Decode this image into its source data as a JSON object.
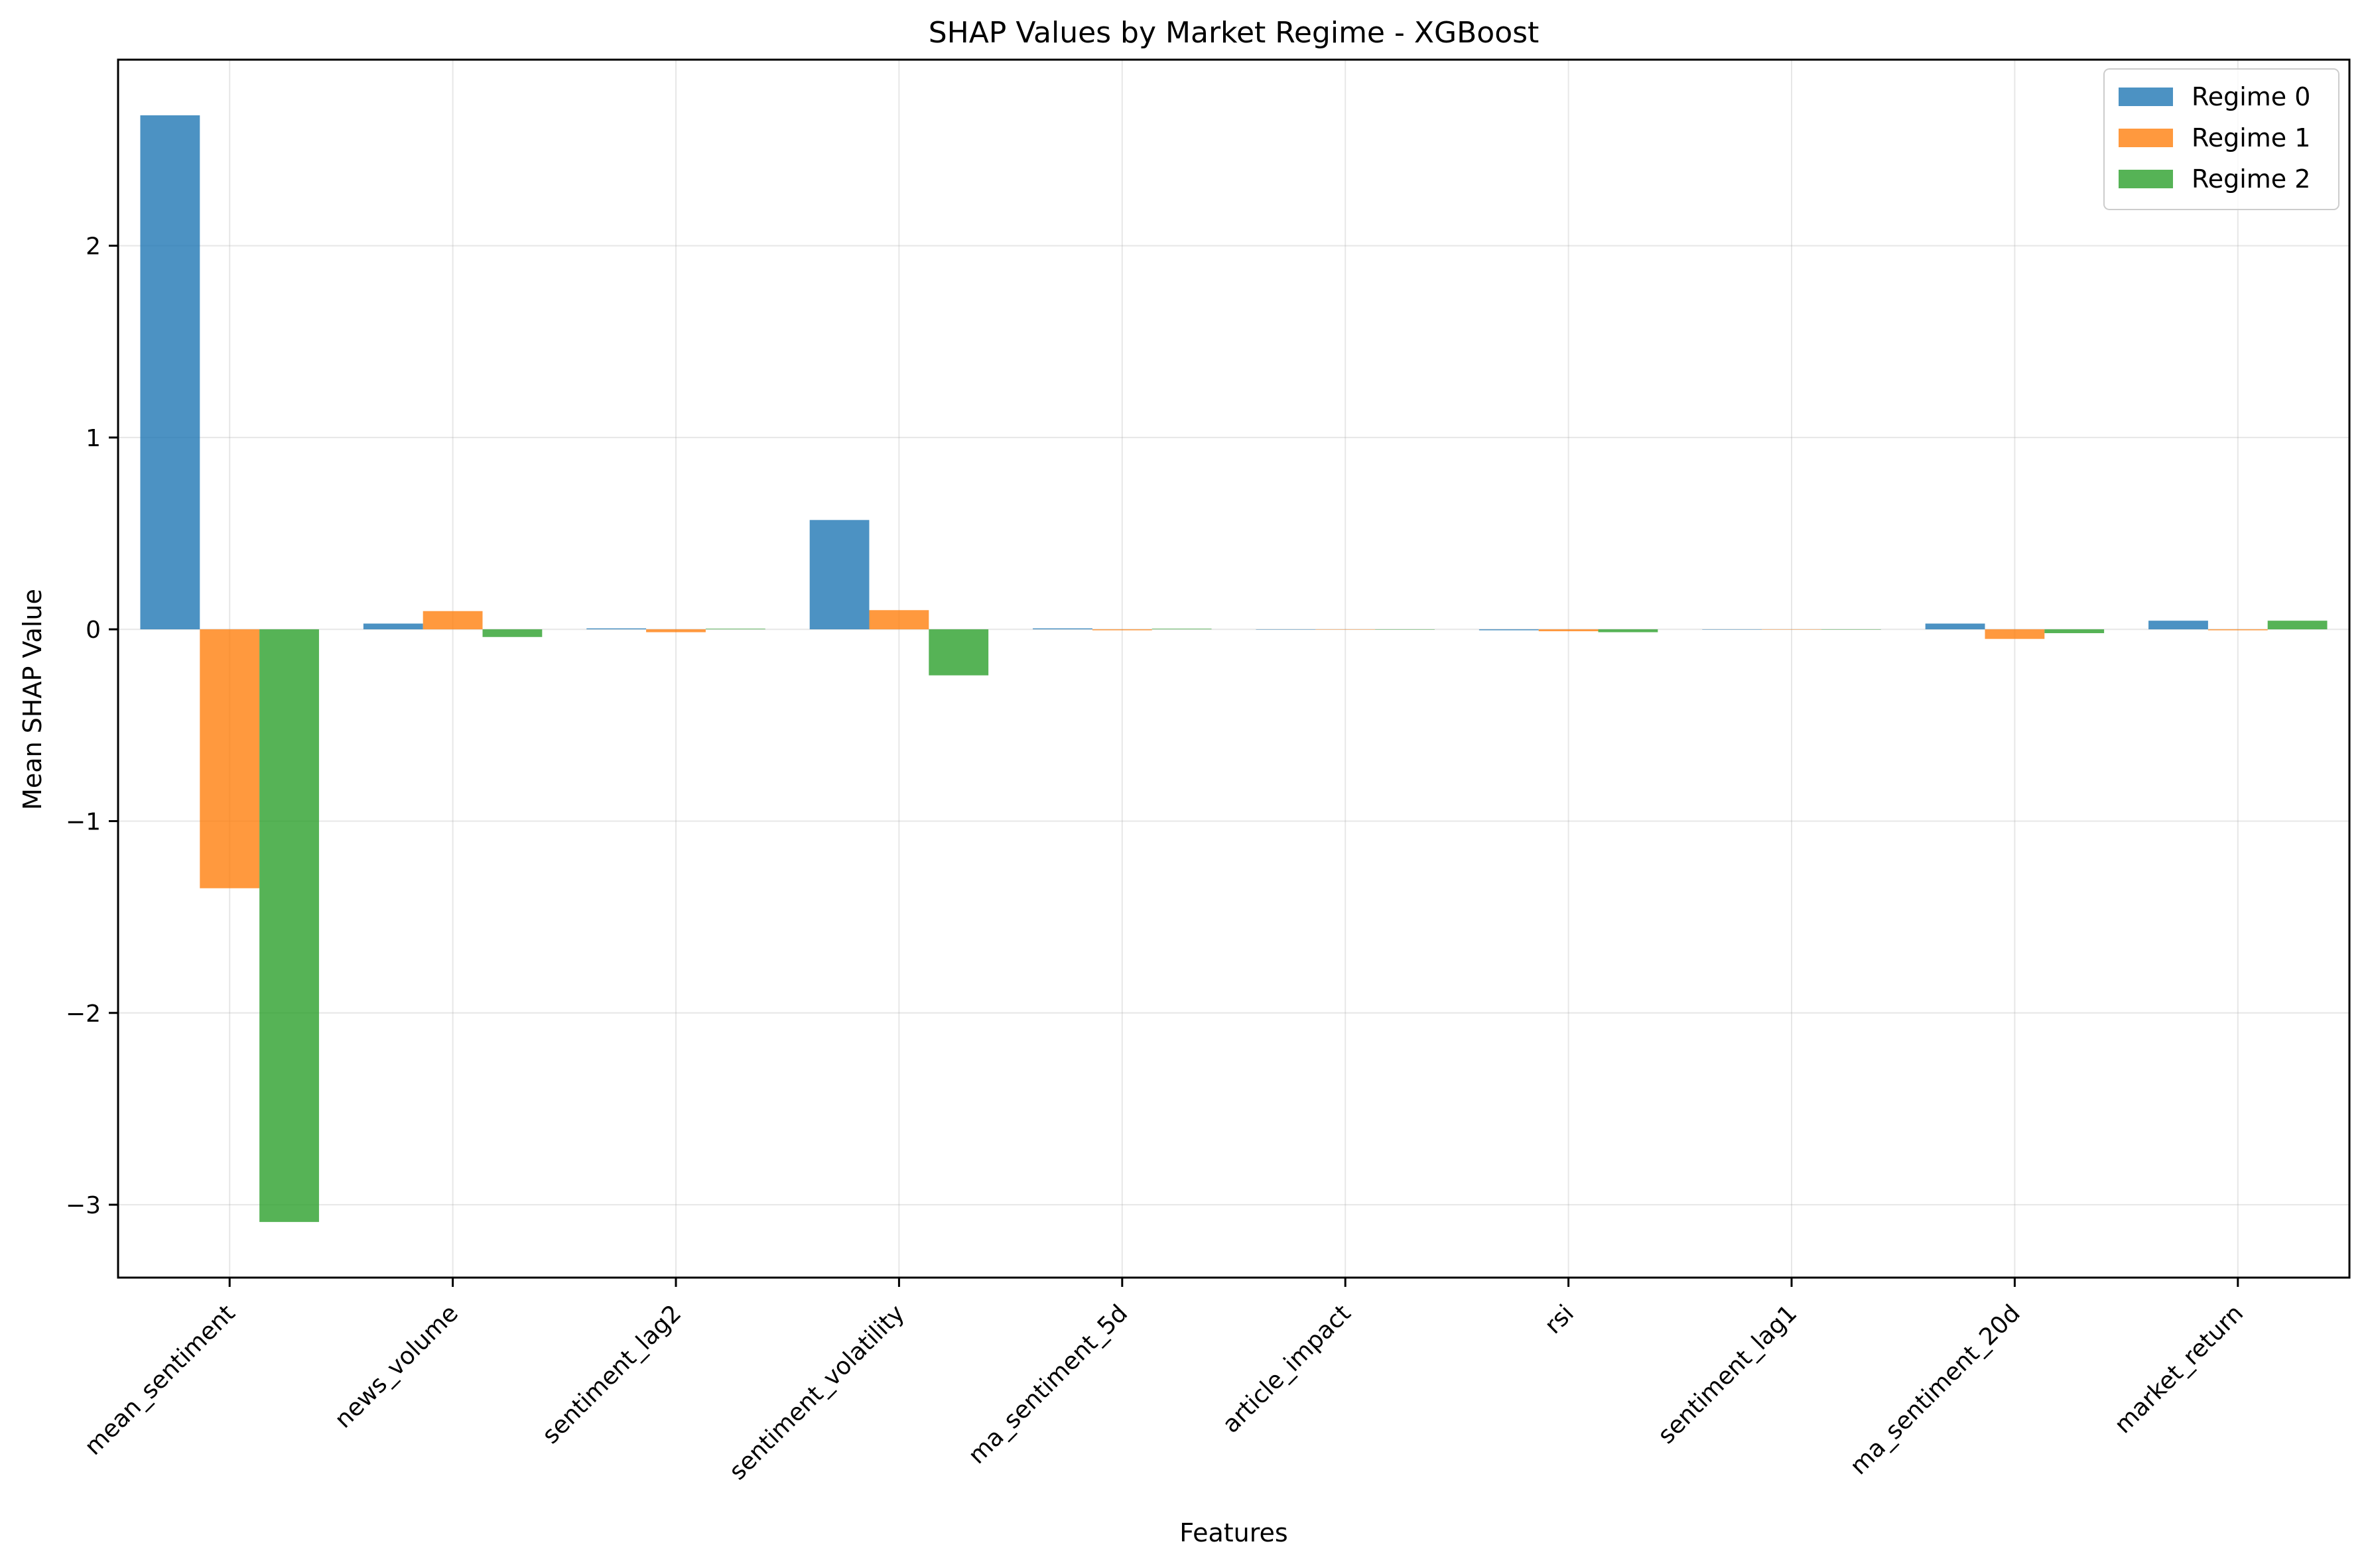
{
  "chart_data": {
    "type": "bar",
    "title": "SHAP Values by Market Regime - XGBoost",
    "xlabel": "Features",
    "ylabel": "Mean SHAP Value",
    "categories": [
      "mean_sentiment",
      "news_volume",
      "sentiment_lag2",
      "sentiment_volatility",
      "ma_sentiment_5d",
      "article_impact",
      "rsi",
      "sentiment_lag1",
      "ma_sentiment_20d",
      "market_return"
    ],
    "series": [
      {
        "name": "Regime 0",
        "color": "#1f77b4",
        "values": [
          2.68,
          0.03,
          0.005,
          0.57,
          0.005,
          0.0,
          -0.005,
          0.0,
          0.03,
          0.045
        ]
      },
      {
        "name": "Regime 1",
        "color": "#ff7f0e",
        "values": [
          -1.35,
          0.095,
          -0.015,
          0.1,
          -0.005,
          0.0,
          -0.01,
          0.0,
          -0.05,
          -0.005
        ]
      },
      {
        "name": "Regime 2",
        "color": "#2ca02c",
        "values": [
          -3.09,
          -0.04,
          0.003,
          -0.24,
          0.003,
          0.0,
          -0.015,
          0.0,
          -0.02,
          0.045
        ]
      }
    ],
    "yticks": [
      -3,
      -2,
      -1,
      0,
      1,
      2
    ],
    "ytick_labels": [
      "−3",
      "−2",
      "−1",
      "0",
      "1",
      "2"
    ],
    "ylim": [
      -3.38,
      2.97
    ],
    "grid": true,
    "legend_position": "upper right"
  }
}
